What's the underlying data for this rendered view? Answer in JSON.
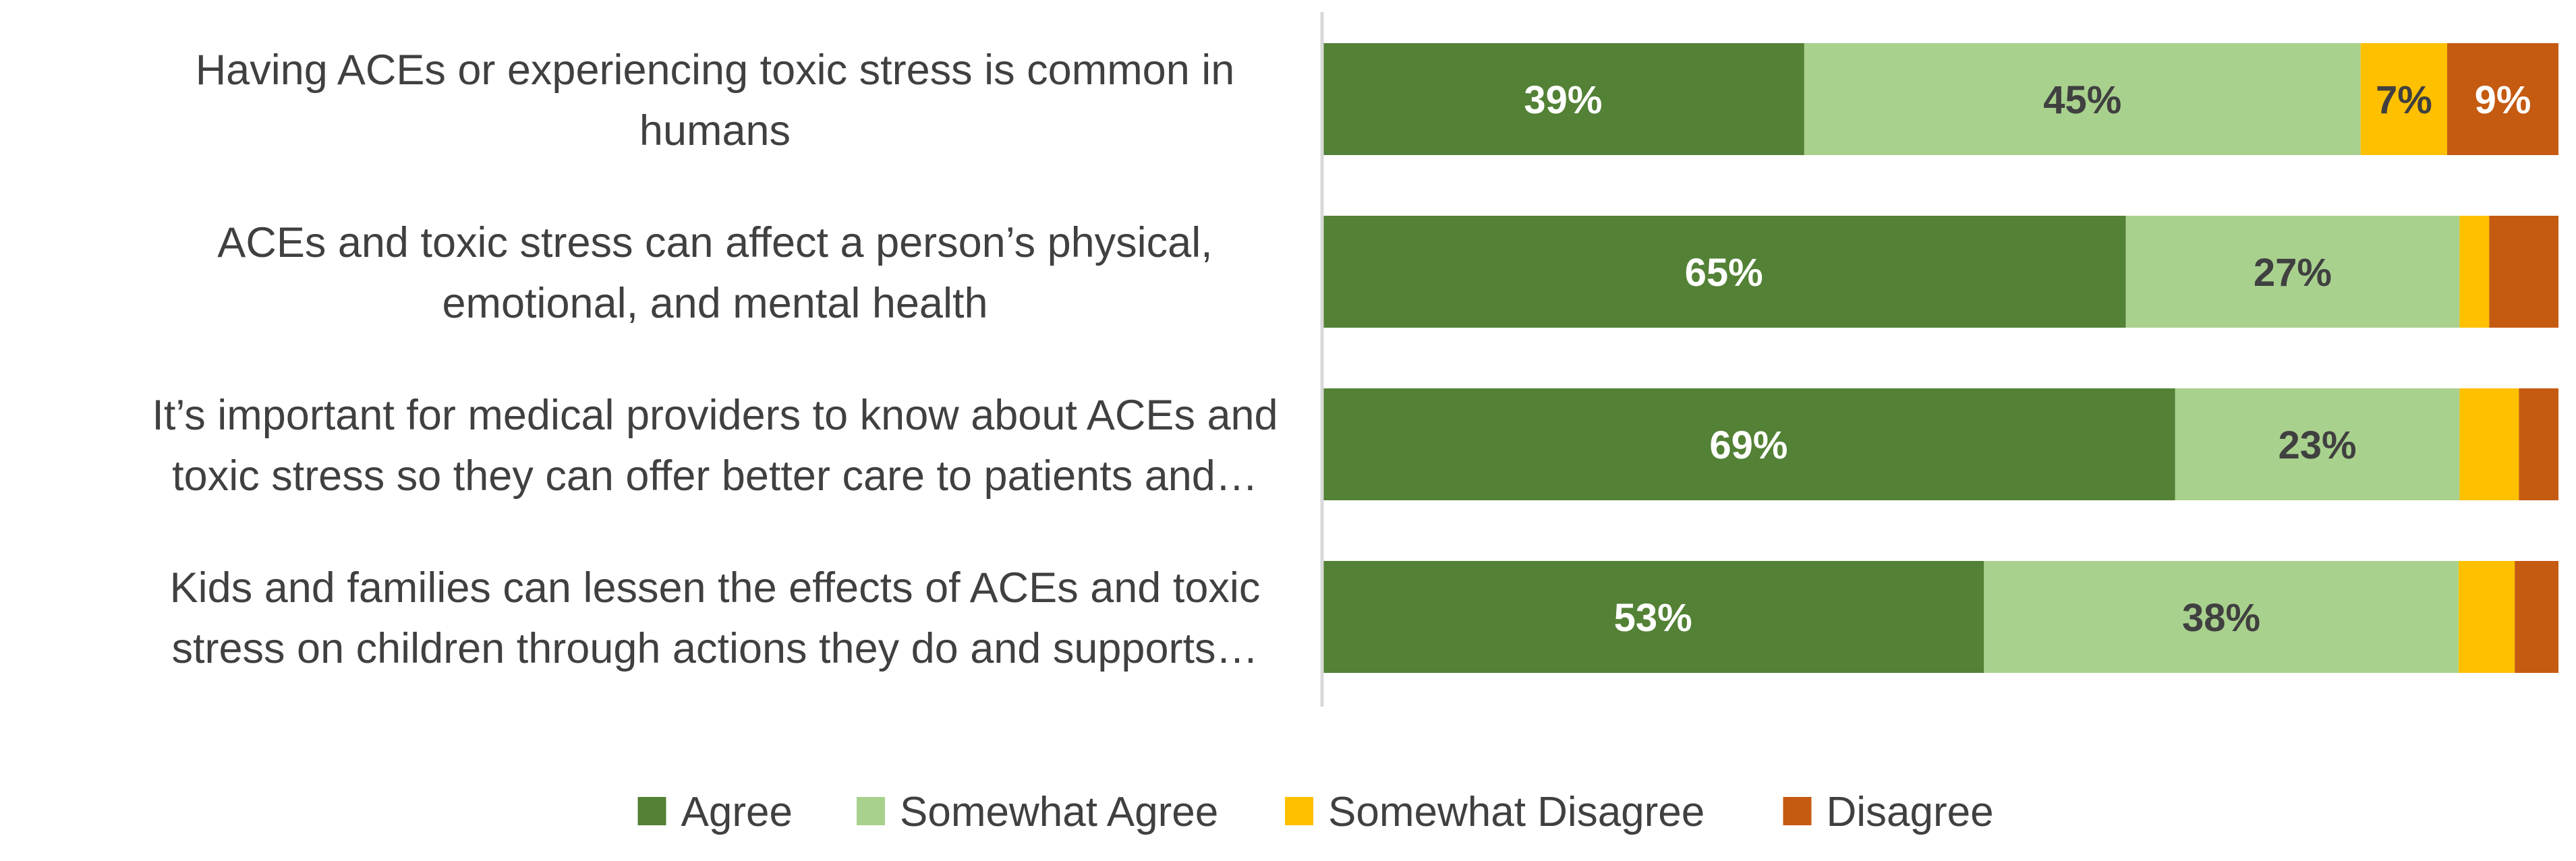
{
  "chart_data": {
    "type": "bar",
    "orientation": "horizontal",
    "stacked": "100%",
    "categories": [
      [
        "Having ACEs or experiencing toxic stress is common in",
        "humans"
      ],
      [
        "ACEs and toxic stress can affect a person’s physical,",
        "emotional, and mental health"
      ],
      [
        "It’s important for medical providers to know about ACEs and",
        "toxic stress so they can offer better care to patients and…"
      ],
      [
        "Kids and families can lessen the effects of ACEs and toxic",
        "stress on children through actions they do and supports…"
      ]
    ],
    "series": [
      {
        "name": "Agree",
        "color": "#538135",
        "label_color": "#ffffff",
        "label_bold": true,
        "values": [
          39,
          65,
          69,
          53
        ],
        "labels": [
          "39%",
          "65%",
          "69%",
          "53%"
        ]
      },
      {
        "name": "Somewhat Agree",
        "color": "#a9d18e",
        "label_color": "#404040",
        "label_bold": true,
        "values": [
          45,
          27,
          23,
          38
        ],
        "labels": [
          "45%",
          "27%",
          "23%",
          "38%"
        ]
      },
      {
        "name": "Somewhat Disagree",
        "color": "#ffc000",
        "label_color": "#404040",
        "label_bold": false,
        "values": [
          7,
          2.4,
          4.8,
          4.5
        ],
        "labels": [
          "7%",
          "",
          "",
          ""
        ]
      },
      {
        "name": "Disagree",
        "color": "#c55a11",
        "label_color": "#ffffff",
        "label_bold": false,
        "values": [
          9,
          5.6,
          3.2,
          3.5
        ],
        "labels": [
          "9%",
          "",
          "",
          ""
        ]
      }
    ],
    "xlim": [
      0,
      100
    ],
    "grid": false,
    "legend_position": "bottom"
  }
}
